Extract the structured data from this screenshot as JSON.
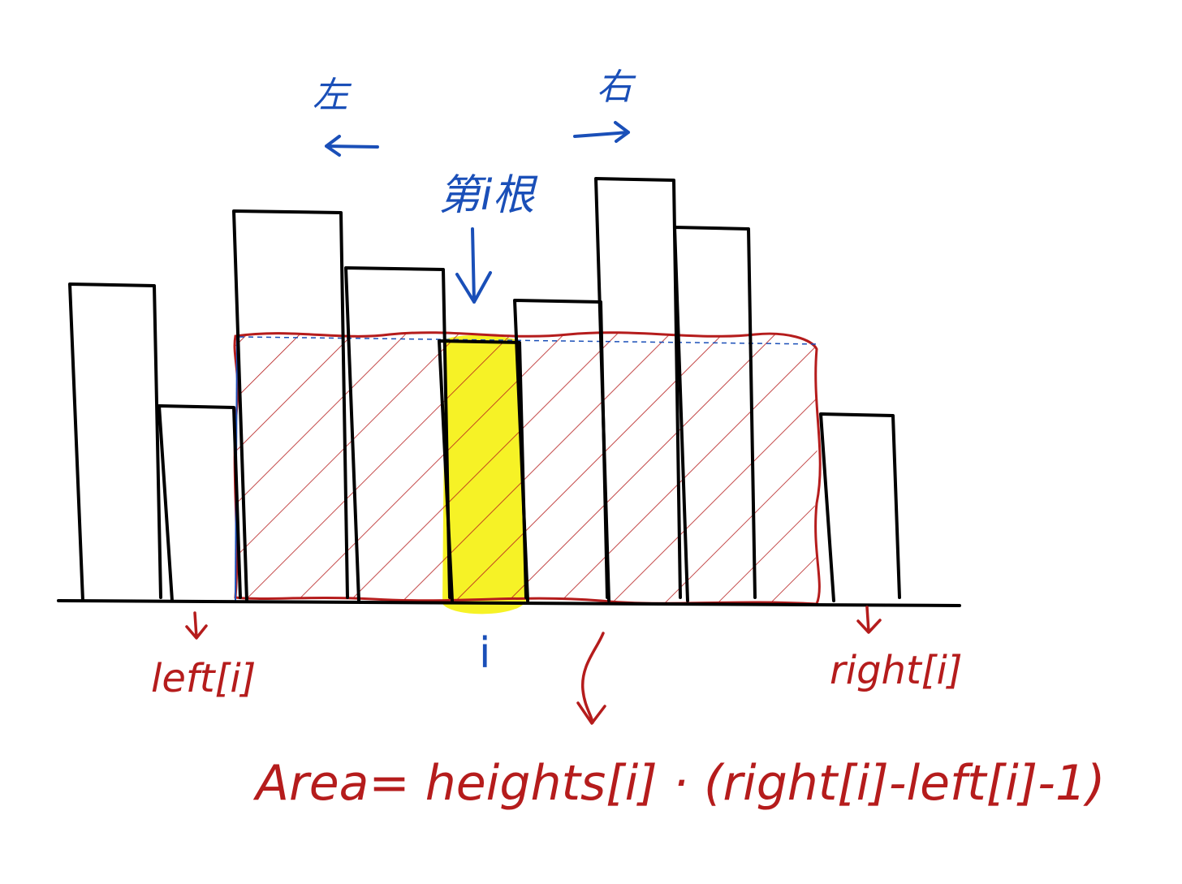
{
  "diagram": {
    "labels": {
      "left_direction": "左",
      "right_direction": "右",
      "pivot_label": "第i根",
      "index_label": "i",
      "left_boundary": "left[i]",
      "right_boundary": "right[i]",
      "formula": "Area= heights[i] · (right[i]-left[i]-1)"
    },
    "colors": {
      "bar_stroke": "#000000",
      "annotation_blue": "#1a4fb8",
      "annotation_red": "#b51c1c",
      "highlight_yellow": "#f5f000"
    },
    "relative_bar_heights": [
      0.39,
      0.24,
      0.48,
      0.41,
      0.32,
      0.37,
      0.52,
      0.46,
      0.23
    ],
    "highlighted_bar_index": 4
  }
}
